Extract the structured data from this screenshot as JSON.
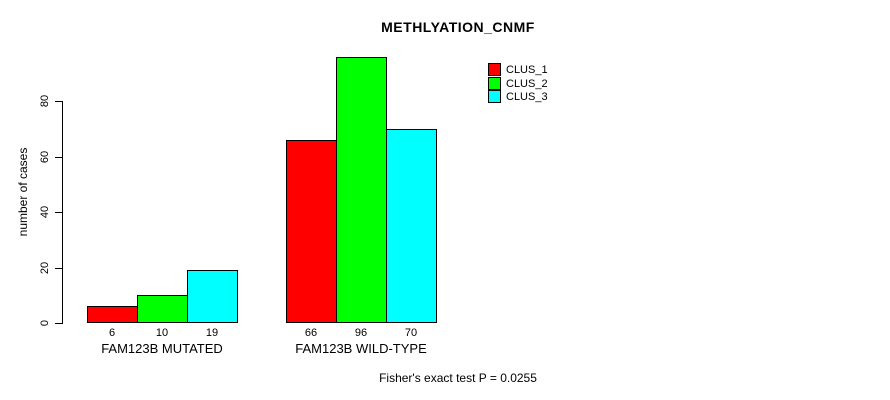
{
  "title": "METHLYATION_CNMF",
  "footer_note": "Fisher's exact test P = 0.0255",
  "chart_data": {
    "type": "bar",
    "title": "METHLYATION_CNMF",
    "xlabel": "",
    "ylabel": "number of cases",
    "categories": [
      "FAM123B MUTATED",
      "FAM123B WILD-TYPE"
    ],
    "series": [
      {
        "name": "CLUS_1",
        "color": "#ff0000",
        "values": [
          6,
          66
        ]
      },
      {
        "name": "CLUS_2",
        "color": "#00ff00",
        "values": [
          10,
          96
        ]
      },
      {
        "name": "CLUS_3",
        "color": "#00ffff",
        "values": [
          19,
          70
        ]
      }
    ],
    "bar_value_labels": [
      [
        "6",
        "10",
        "19"
      ],
      [
        "66",
        "96",
        "70"
      ]
    ],
    "y_ticks": [
      0,
      20,
      40,
      60,
      80
    ],
    "ylim": [
      0,
      96
    ],
    "grid": false,
    "legend_position": "top-right-inside",
    "legend_entries": [
      "CLUS_1",
      "CLUS_2",
      "CLUS_3"
    ],
    "annotation": "Fisher's exact test P = 0.0255"
  }
}
